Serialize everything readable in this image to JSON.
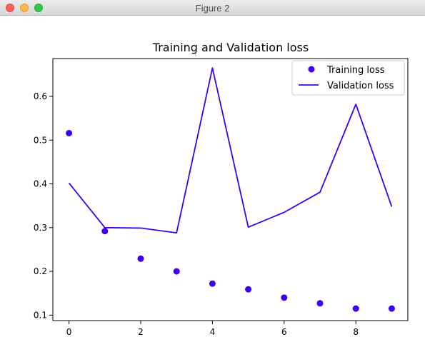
{
  "window": {
    "title": "Figure 2"
  },
  "chart_data": {
    "type": "line",
    "title": "Training and Validation loss",
    "xlabel": "",
    "ylabel": "",
    "xlim": [
      -0.45,
      9.45
    ],
    "ylim": [
      0.0875,
      0.6865
    ],
    "xticks": [
      0,
      2,
      4,
      6,
      8
    ],
    "yticks": [
      0.1,
      0.2,
      0.3,
      0.4,
      0.5,
      0.6
    ],
    "ytick_labels": [
      "0.1",
      "0.2",
      "0.3",
      "0.4",
      "0.5",
      "0.6"
    ],
    "grid": false,
    "legend_position": "top-right",
    "x": [
      0,
      1,
      2,
      3,
      4,
      5,
      6,
      7,
      8,
      9
    ],
    "series": [
      {
        "name": "Training loss",
        "style": "markers",
        "color": "#3d00f0",
        "values": [
          0.516,
          0.292,
          0.229,
          0.2,
          0.172,
          0.159,
          0.14,
          0.127,
          0.115,
          0.115
        ]
      },
      {
        "name": "Validation loss",
        "style": "line",
        "color": "#3d00f0",
        "values": [
          0.402,
          0.3,
          0.299,
          0.288,
          0.665,
          0.301,
          0.335,
          0.381,
          0.582,
          0.348
        ]
      }
    ]
  }
}
